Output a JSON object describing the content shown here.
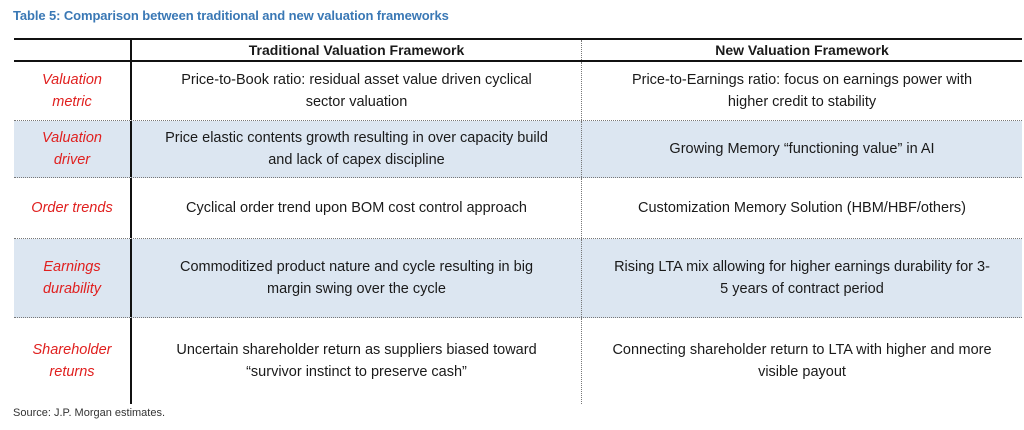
{
  "title": "Table 5: Comparison between traditional and new valuation frameworks",
  "table": {
    "headers": [
      "",
      "Traditional Valuation Framework",
      "New Valuation Framework"
    ],
    "rows": [
      {
        "label_lines": [
          "Valuation",
          "metric"
        ],
        "traditional_lines": [
          "Price-to-Book ratio: residual asset value driven cyclical",
          "sector valuation"
        ],
        "new_lines": [
          "Price-to-Earnings ratio: focus on earnings power with",
          "higher credit to stability"
        ]
      },
      {
        "label_lines": [
          "Valuation",
          "driver"
        ],
        "traditional_lines": [
          "Price elastic contents growth resulting in over capacity build",
          "and lack of capex discipline"
        ],
        "new_lines": [
          "Growing Memory “functioning value” in AI"
        ]
      },
      {
        "label_lines": [
          "Order trends"
        ],
        "traditional_lines": [
          "Cyclical order trend upon BOM cost control approach"
        ],
        "new_lines": [
          "Customization Memory Solution (HBM/HBF/others)"
        ]
      },
      {
        "label_lines": [
          "Earnings",
          "durability"
        ],
        "traditional_lines": [
          "Commoditized product nature and cycle resulting in big",
          "margin swing over the cycle"
        ],
        "new_lines": [
          "Rising LTA mix allowing for higher earnings durability for 3-",
          "5 years of contract period"
        ]
      },
      {
        "label_lines": [
          "Shareholder",
          "returns"
        ],
        "traditional_lines": [
          "Uncertain shareholder return as suppliers biased toward",
          "“survivor instinct to preserve cash”"
        ],
        "new_lines": [
          "Connecting shareholder return to LTA with higher and more",
          "visible payout"
        ]
      }
    ]
  },
  "source": "Source: J.P. Morgan estimates."
}
